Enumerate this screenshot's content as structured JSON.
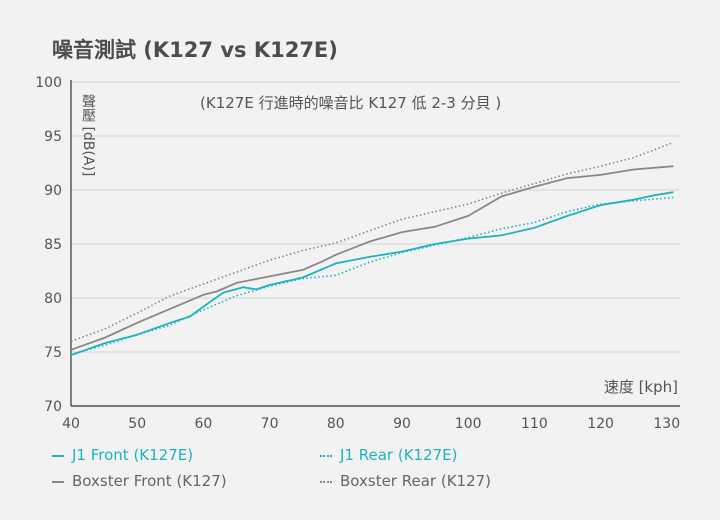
{
  "chart_data": {
    "type": "line",
    "title": "噪音測試 (K127 vs K127E)",
    "subtitle": "(K127E 行進時的噪音比 K127 低 2-3 分貝 )",
    "ylabel": "聲壓 [dB(A)]",
    "xlabel": "速度 [kph]",
    "xlim": [
      40,
      132
    ],
    "ylim": [
      70,
      100
    ],
    "xticks": [
      40,
      50,
      60,
      70,
      80,
      90,
      100,
      110,
      120,
      130
    ],
    "yticks": [
      70,
      75,
      80,
      85,
      90,
      95,
      100
    ],
    "grid": true,
    "legend_position": "bottom",
    "series": [
      {
        "name": "J1 Front (K127E)",
        "color": "#1fb3bf",
        "style": "solid",
        "x": [
          40,
          45,
          50,
          55,
          58,
          60,
          63,
          66,
          68,
          70,
          75,
          80,
          85,
          90,
          95,
          100,
          105,
          110,
          115,
          120,
          125,
          128,
          131
        ],
        "y": [
          74.7,
          75.8,
          76.6,
          77.7,
          78.3,
          79.2,
          80.5,
          81.0,
          80.8,
          81.2,
          81.9,
          83.2,
          83.8,
          84.3,
          85.0,
          85.5,
          85.8,
          86.5,
          87.6,
          88.6,
          89.1,
          89.5,
          89.8
        ]
      },
      {
        "name": "J1 Rear (K127E)",
        "color": "#1fb3bf",
        "style": "dotted",
        "x": [
          40,
          45,
          50,
          55,
          60,
          65,
          70,
          75,
          80,
          85,
          90,
          95,
          100,
          105,
          110,
          115,
          120,
          125,
          131
        ],
        "y": [
          74.8,
          75.6,
          76.6,
          77.5,
          78.9,
          80.2,
          81.1,
          81.8,
          82.1,
          83.3,
          84.2,
          84.9,
          85.6,
          86.4,
          87.0,
          88.0,
          88.7,
          89.0,
          89.3
        ]
      },
      {
        "name": "Boxster Front (K127)",
        "color": "#888888",
        "style": "solid",
        "x": [
          40,
          45,
          50,
          55,
          60,
          62,
          65,
          70,
          75,
          78,
          80,
          85,
          90,
          95,
          100,
          105,
          110,
          115,
          120,
          125,
          131
        ],
        "y": [
          75.2,
          76.3,
          77.7,
          79.0,
          80.3,
          80.6,
          81.4,
          82.0,
          82.6,
          83.4,
          84.0,
          85.2,
          86.1,
          86.6,
          87.6,
          89.4,
          90.3,
          91.1,
          91.4,
          91.9,
          92.2
        ]
      },
      {
        "name": "Boxster Rear (K127)",
        "color": "#888888",
        "style": "dotted",
        "x": [
          40,
          45,
          50,
          55,
          60,
          65,
          70,
          75,
          80,
          85,
          90,
          95,
          100,
          105,
          110,
          115,
          120,
          125,
          131
        ],
        "y": [
          76.0,
          77.1,
          78.6,
          80.2,
          81.3,
          82.4,
          83.5,
          84.4,
          85.1,
          86.2,
          87.3,
          88.0,
          88.7,
          89.7,
          90.6,
          91.5,
          92.2,
          93.0,
          94.4
        ]
      }
    ]
  }
}
